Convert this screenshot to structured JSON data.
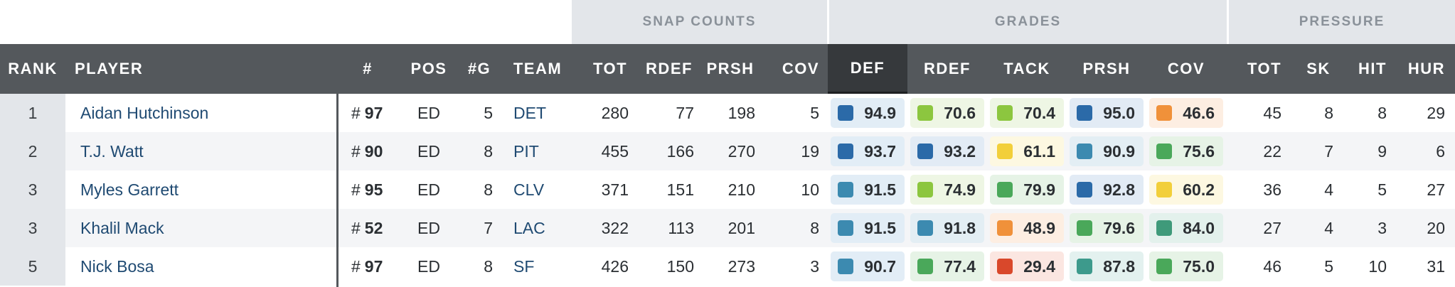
{
  "group_headers": {
    "snap_counts": "SNAP COUNTS",
    "grades": "GRADES",
    "pressure": "PRESSURE"
  },
  "columns": {
    "rank": "RANK",
    "player": "PLAYER",
    "num": "#",
    "pos": "POS",
    "games": "#G",
    "team": "TEAM",
    "snap_tot": "TOT",
    "snap_rdef": "RDEF",
    "snap_prsh": "PRSH",
    "snap_cov": "COV",
    "grade_def": "DEF",
    "grade_rdef": "RDEF",
    "grade_tack": "TACK",
    "grade_prsh": "PRSH",
    "grade_cov": "COV",
    "pr_tot": "TOT",
    "pr_sk": "SK",
    "pr_hit": "HIT",
    "pr_hur": "HUR"
  },
  "sorted_column": "grade_def",
  "grade_colors": {
    "elite_dark_blue": "#2b6aa8",
    "high_blue": "#3c8ab0",
    "high_green": "#4aa85a",
    "good_lime": "#8cc63f",
    "avg_yellow": "#f2cf3a",
    "below_orange": "#f0913a",
    "poor_red": "#d9482b",
    "high_teal": "#3d9a8c",
    "high_seagreen": "#3f9a7a"
  },
  "rows": [
    {
      "rank": "1",
      "player": "Aidan Hutchinson",
      "hash": "#",
      "number": "97",
      "pos": "ED",
      "games": "5",
      "team": "DET",
      "snap_tot": "280",
      "snap_rdef": "77",
      "snap_prsh": "198",
      "snap_cov": "5",
      "grades": {
        "def": {
          "value": "94.9",
          "color": "#2b6aa8",
          "bg": "#e2edf6"
        },
        "rdef": {
          "value": "70.6",
          "color": "#8cc63f",
          "bg": "#eef6e4"
        },
        "tack": {
          "value": "70.4",
          "color": "#8cc63f",
          "bg": "#eef6e4"
        },
        "prsh": {
          "value": "95.0",
          "color": "#2b6aa8",
          "bg": "#e2ebf5"
        },
        "cov": {
          "value": "46.6",
          "color": "#f0913a",
          "bg": "#fdeee2"
        }
      },
      "pr_tot": "45",
      "pr_sk": "8",
      "pr_hit": "8",
      "pr_hur": "29"
    },
    {
      "rank": "2",
      "player": "T.J. Watt",
      "hash": "#",
      "number": "90",
      "pos": "ED",
      "games": "8",
      "team": "PIT",
      "snap_tot": "455",
      "snap_rdef": "166",
      "snap_prsh": "270",
      "snap_cov": "19",
      "grades": {
        "def": {
          "value": "93.7",
          "color": "#2b6aa8",
          "bg": "#e2edf6"
        },
        "rdef": {
          "value": "93.2",
          "color": "#2b6aa8",
          "bg": "#e2ebf5"
        },
        "tack": {
          "value": "61.1",
          "color": "#f2cf3a",
          "bg": "#fdf8e1"
        },
        "prsh": {
          "value": "90.9",
          "color": "#3c8ab0",
          "bg": "#e3eef4"
        },
        "cov": {
          "value": "75.6",
          "color": "#4aa85a",
          "bg": "#e6f3e6"
        }
      },
      "pr_tot": "22",
      "pr_sk": "7",
      "pr_hit": "9",
      "pr_hur": "6"
    },
    {
      "rank": "3",
      "player": "Myles Garrett",
      "hash": "#",
      "number": "95",
      "pos": "ED",
      "games": "8",
      "team": "CLV",
      "snap_tot": "371",
      "snap_rdef": "151",
      "snap_prsh": "210",
      "snap_cov": "10",
      "grades": {
        "def": {
          "value": "91.5",
          "color": "#3c8ab0",
          "bg": "#e2edf6"
        },
        "rdef": {
          "value": "74.9",
          "color": "#8cc63f",
          "bg": "#eef6e4"
        },
        "tack": {
          "value": "79.9",
          "color": "#4aa85a",
          "bg": "#e6f3e6"
        },
        "prsh": {
          "value": "92.8",
          "color": "#2b6aa8",
          "bg": "#e2ebf5"
        },
        "cov": {
          "value": "60.2",
          "color": "#f2cf3a",
          "bg": "#fdf8e1"
        }
      },
      "pr_tot": "36",
      "pr_sk": "4",
      "pr_hit": "5",
      "pr_hur": "27"
    },
    {
      "rank": "3",
      "player": "Khalil Mack",
      "hash": "#",
      "number": "52",
      "pos": "ED",
      "games": "7",
      "team": "LAC",
      "snap_tot": "322",
      "snap_rdef": "113",
      "snap_prsh": "201",
      "snap_cov": "8",
      "grades": {
        "def": {
          "value": "91.5",
          "color": "#3c8ab0",
          "bg": "#e2edf6"
        },
        "rdef": {
          "value": "91.8",
          "color": "#3c8ab0",
          "bg": "#e3eef4"
        },
        "tack": {
          "value": "48.9",
          "color": "#f0913a",
          "bg": "#fdeee2"
        },
        "prsh": {
          "value": "79.6",
          "color": "#4aa85a",
          "bg": "#e6f3e6"
        },
        "cov": {
          "value": "84.0",
          "color": "#3f9a7a",
          "bg": "#e3f1ec"
        }
      },
      "pr_tot": "27",
      "pr_sk": "4",
      "pr_hit": "3",
      "pr_hur": "20"
    },
    {
      "rank": "5",
      "player": "Nick Bosa",
      "hash": "#",
      "number": "97",
      "pos": "ED",
      "games": "8",
      "team": "SF",
      "snap_tot": "426",
      "snap_rdef": "150",
      "snap_prsh": "273",
      "snap_cov": "3",
      "grades": {
        "def": {
          "value": "90.7",
          "color": "#3c8ab0",
          "bg": "#e2edf6"
        },
        "rdef": {
          "value": "77.4",
          "color": "#4aa85a",
          "bg": "#e6f3e6"
        },
        "tack": {
          "value": "29.4",
          "color": "#d9482b",
          "bg": "#fbe6e1"
        },
        "prsh": {
          "value": "87.8",
          "color": "#3d9a8c",
          "bg": "#e3f1ef"
        },
        "cov": {
          "value": "75.0",
          "color": "#4aa85a",
          "bg": "#e6f3e6"
        }
      },
      "pr_tot": "46",
      "pr_sk": "5",
      "pr_hit": "10",
      "pr_hur": "31"
    }
  ]
}
